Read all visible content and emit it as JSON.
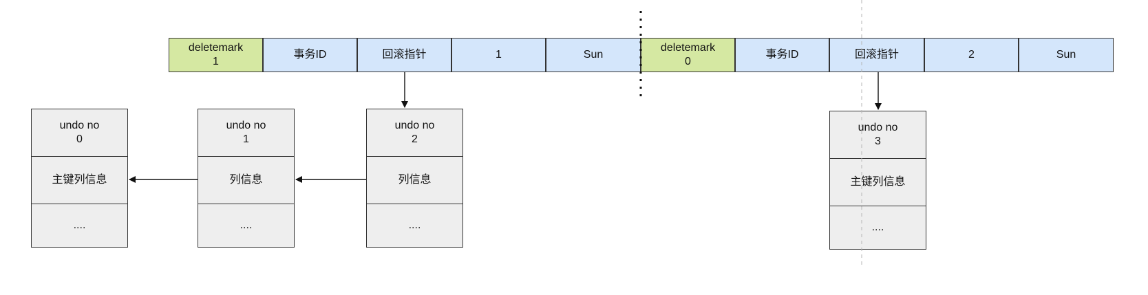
{
  "row_left": [
    {
      "name": "deletemark-cell",
      "text": "deletemark\n1",
      "color": "green"
    },
    {
      "name": "transaction-id-cell",
      "text": "事务ID",
      "color": "blue"
    },
    {
      "name": "rollback-pointer-cell",
      "text": "回滚指针",
      "color": "blue"
    },
    {
      "name": "id-value-cell",
      "text": "1",
      "color": "blue"
    },
    {
      "name": "name-value-cell",
      "text": "Sun",
      "color": "blue"
    }
  ],
  "row_right": [
    {
      "name": "deletemark-cell",
      "text": "deletemark\n0",
      "color": "green"
    },
    {
      "name": "transaction-id-cell",
      "text": "事务ID",
      "color": "blue"
    },
    {
      "name": "rollback-pointer-cell",
      "text": "回滚指针",
      "color": "blue"
    },
    {
      "name": "id-value-cell",
      "text": "2",
      "color": "blue"
    },
    {
      "name": "name-value-cell",
      "text": "Sun",
      "color": "blue"
    }
  ],
  "undo_logs": [
    {
      "header": "undo no\n0",
      "info": "主键列信息",
      "more": "...."
    },
    {
      "header": "undo no\n1",
      "info": "列信息",
      "more": "...."
    },
    {
      "header": "undo no\n2",
      "info": "列信息",
      "more": "...."
    },
    {
      "header": "undo no\n3",
      "info": "主键列信息",
      "more": "...."
    }
  ],
  "colors": {
    "green": "#d5e8a2",
    "blue": "#d4e6fb",
    "undo_fill": "#eeeeee",
    "stroke": "#333333"
  }
}
